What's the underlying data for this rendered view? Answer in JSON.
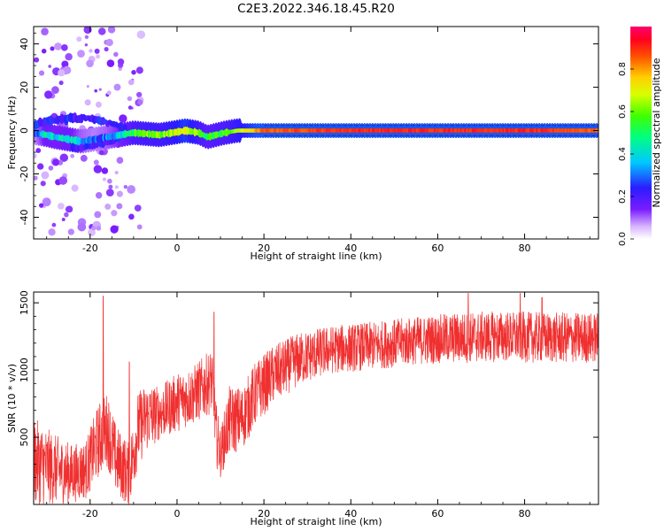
{
  "title": "C2E3.2022.346.18.45.R20",
  "colors": {
    "signal": "#f03030",
    "axis": "#000000"
  },
  "chart_data": [
    {
      "type": "heatmap",
      "title": "C2E3.2022.346.18.45.R20",
      "xlabel": "Height of straight line (km)",
      "ylabel": "Frequency (Hz)",
      "xlim": [
        -33,
        97
      ],
      "ylim": [
        -50,
        48
      ],
      "xticks": [
        -20,
        0,
        20,
        40,
        60,
        80
      ],
      "yticks": [
        -40,
        -20,
        0,
        20,
        40
      ],
      "xtick_labels": [
        "-20",
        "0",
        "20",
        "40",
        "60",
        "80"
      ],
      "ytick_labels": [
        "-40",
        "-20",
        "0",
        "20",
        "40"
      ],
      "colorbar": {
        "label": "Normalized spectral amplitude",
        "range": [
          0,
          1
        ],
        "ticks": [
          0.0,
          0.2,
          0.4,
          0.6,
          0.8
        ],
        "tick_labels": [
          "0.0",
          "0.2",
          "0.4",
          "0.6",
          "0.8"
        ],
        "colormap": "rainbow (white-violet-blue-cyan-green-yellow-orange-red-magenta)"
      },
      "ridge": [
        {
          "x": -33,
          "f": -1,
          "amp": 0.2
        },
        {
          "x": -30,
          "f": -2,
          "amp": 0.45
        },
        {
          "x": -28,
          "f": -3,
          "amp": 0.4
        },
        {
          "x": -25,
          "f": -4,
          "amp": 0.45
        },
        {
          "x": -22,
          "f": -5,
          "amp": 0.3
        },
        {
          "x": -19,
          "f": -4,
          "amp": 0.25
        },
        {
          "x": -16,
          "f": -3,
          "amp": 0.3
        },
        {
          "x": -13,
          "f": -2,
          "amp": 0.4
        },
        {
          "x": -10,
          "f": -1,
          "amp": 0.55
        },
        {
          "x": -7,
          "f": -1.5,
          "amp": 0.6
        },
        {
          "x": -4,
          "f": -2,
          "amp": 0.6
        },
        {
          "x": -1,
          "f": -1,
          "amp": 0.65
        },
        {
          "x": 2,
          "f": 0,
          "amp": 0.75
        },
        {
          "x": 5,
          "f": -1,
          "amp": 0.6
        },
        {
          "x": 7,
          "f": -3,
          "amp": 0.5
        },
        {
          "x": 9,
          "f": -2,
          "amp": 0.55
        },
        {
          "x": 11,
          "f": -1,
          "amp": 0.55
        },
        {
          "x": 14,
          "f": 0,
          "amp": 0.65
        },
        {
          "x": 20,
          "f": 0,
          "amp": 0.85
        },
        {
          "x": 40,
          "f": 0,
          "amp": 0.9
        },
        {
          "x": 60,
          "f": 0,
          "amp": 0.9
        },
        {
          "x": 80,
          "f": 0,
          "amp": 0.9
        },
        {
          "x": 97,
          "f": 0,
          "amp": 0.85
        }
      ],
      "secondary_branch": [
        {
          "x": -33,
          "f": 3
        },
        {
          "x": -28,
          "f": 5
        },
        {
          "x": -22,
          "f": 6
        },
        {
          "x": -18,
          "f": 5
        },
        {
          "x": -15,
          "f": 3
        },
        {
          "x": -12,
          "f": 1
        }
      ],
      "lower_branch": [
        {
          "x": -24,
          "f": -8
        },
        {
          "x": -20,
          "f": -7
        },
        {
          "x": -16,
          "f": -5
        },
        {
          "x": -12,
          "f": -2
        }
      ]
    },
    {
      "type": "line",
      "xlabel": "Height of straight line (km)",
      "ylabel": "SNR (10 * v/v)",
      "xlim": [
        -33,
        97
      ],
      "ylim": [
        0,
        1580
      ],
      "xticks": [
        -20,
        0,
        20,
        40,
        60,
        80
      ],
      "yticks": [
        500,
        1000,
        1500
      ],
      "xtick_labels": [
        "-20",
        "0",
        "20",
        "40",
        "60",
        "80"
      ],
      "ytick_labels": [
        "500",
        "1000",
        "1500"
      ],
      "series": [
        {
          "color": "#f03030",
          "trend": [
            {
              "x": -33,
              "y": 320,
              "spread": 330
            },
            {
              "x": -28,
              "y": 260,
              "spread": 260
            },
            {
              "x": -24,
              "y": 230,
              "spread": 220
            },
            {
              "x": -21,
              "y": 260,
              "spread": 220
            },
            {
              "x": -18,
              "y": 480,
              "spread": 280
            },
            {
              "x": -16,
              "y": 560,
              "spread": 280
            },
            {
              "x": -14,
              "y": 330,
              "spread": 260
            },
            {
              "x": -11,
              "y": 220,
              "spread": 240
            },
            {
              "x": -9,
              "y": 560,
              "spread": 280
            },
            {
              "x": -7,
              "y": 650,
              "spread": 260
            },
            {
              "x": -4,
              "y": 680,
              "spread": 200
            },
            {
              "x": 0,
              "y": 760,
              "spread": 220
            },
            {
              "x": 4,
              "y": 820,
              "spread": 220
            },
            {
              "x": 8,
              "y": 920,
              "spread": 240
            },
            {
              "x": 9,
              "y": 520,
              "spread": 240
            },
            {
              "x": 10,
              "y": 380,
              "spread": 180
            },
            {
              "x": 12,
              "y": 620,
              "spread": 260
            },
            {
              "x": 15,
              "y": 640,
              "spread": 240
            },
            {
              "x": 18,
              "y": 820,
              "spread": 240
            },
            {
              "x": 22,
              "y": 960,
              "spread": 220
            },
            {
              "x": 28,
              "y": 1080,
              "spread": 200
            },
            {
              "x": 35,
              "y": 1150,
              "spread": 180
            },
            {
              "x": 45,
              "y": 1180,
              "spread": 180
            },
            {
              "x": 55,
              "y": 1220,
              "spread": 180
            },
            {
              "x": 65,
              "y": 1240,
              "spread": 190
            },
            {
              "x": 75,
              "y": 1250,
              "spread": 190
            },
            {
              "x": 85,
              "y": 1240,
              "spread": 190
            },
            {
              "x": 97,
              "y": 1240,
              "spread": 190
            }
          ],
          "peaks": [
            {
              "x": -17,
              "y": 1550
            },
            {
              "x": -11,
              "y": 1060
            },
            {
              "x": 8.5,
              "y": 1430
            },
            {
              "x": 67,
              "y": 1570
            },
            {
              "x": 79,
              "y": 1570
            },
            {
              "x": 84,
              "y": 1540
            }
          ]
        }
      ]
    }
  ]
}
